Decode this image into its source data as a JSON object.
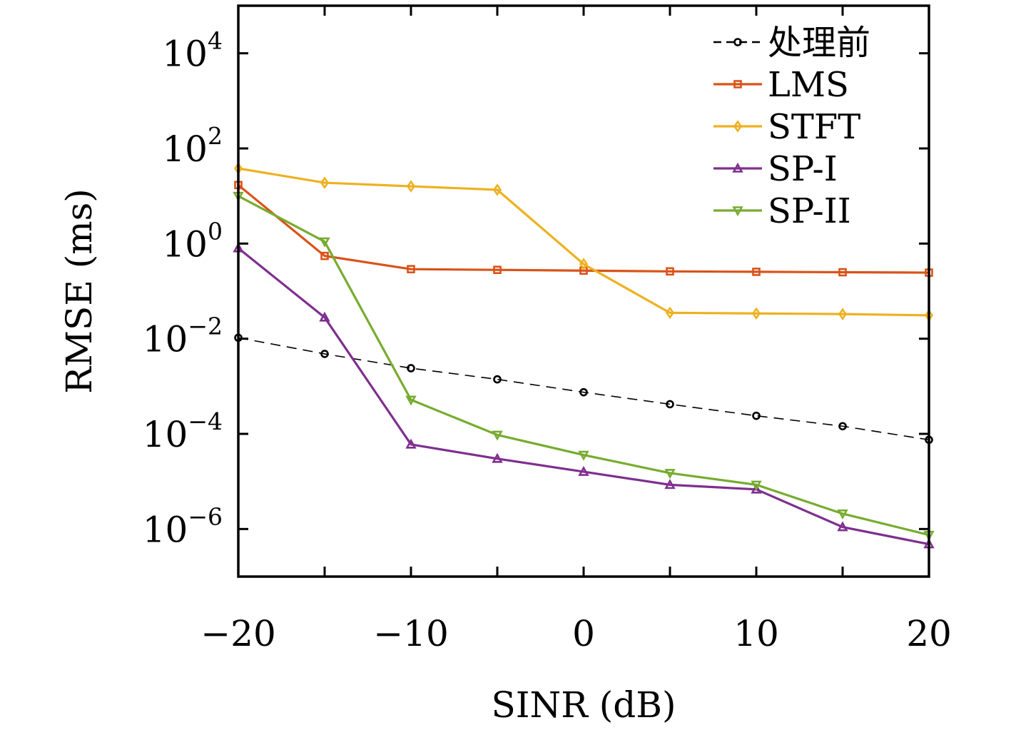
{
  "chart_data": {
    "type": "line",
    "xlabel": "SINR (dB)",
    "ylabel": "RMSE (ms)",
    "yscale": "log",
    "xlim": [
      -20,
      20
    ],
    "ylim": [
      1e-07,
      100000.0
    ],
    "grid": false,
    "legend_position": "top-right",
    "x_ticks": [
      {
        "value": -20,
        "label": "−20"
      },
      {
        "value": -10,
        "label": "−10"
      },
      {
        "value": 0,
        "label": "0"
      },
      {
        "value": 10,
        "label": "10"
      },
      {
        "value": 20,
        "label": "20"
      }
    ],
    "x_minor_ticks": [
      -15,
      -5,
      5,
      15
    ],
    "y_ticks": [
      {
        "value": 10000,
        "base": "10",
        "exp": "4"
      },
      {
        "value": 100,
        "base": "10",
        "exp": "2"
      },
      {
        "value": 1,
        "base": "10",
        "exp": "0"
      },
      {
        "value": 0.01,
        "base": "10",
        "exp": "−2"
      },
      {
        "value": 0.0001,
        "base": "10",
        "exp": "−4"
      },
      {
        "value": 1e-06,
        "base": "10",
        "exp": "−6"
      }
    ],
    "x": [
      -20,
      -15,
      -10,
      -5,
      0,
      5,
      10,
      15,
      20
    ],
    "series": [
      {
        "name": "处理前",
        "color": "#000000",
        "dash": true,
        "marker": "circle",
        "values": [
          0.0105,
          0.0048,
          0.0024,
          0.0014,
          0.00075,
          0.00042,
          0.00024,
          0.000145,
          7.5e-05
        ]
      },
      {
        "name": "LMS",
        "color": "#d95319",
        "dash": false,
        "marker": "square",
        "values": [
          17,
          0.55,
          0.29,
          0.28,
          0.27,
          0.26,
          0.255,
          0.25,
          0.245
        ]
      },
      {
        "name": "STFT",
        "color": "#edb120",
        "dash": false,
        "marker": "diamond",
        "values": [
          38,
          19,
          16,
          13.5,
          0.37,
          0.035,
          0.034,
          0.033,
          0.031
        ]
      },
      {
        "name": "SP-I",
        "color": "#7e2f8e",
        "dash": false,
        "marker": "triangle-up",
        "values": [
          0.8,
          0.028,
          6e-05,
          3e-05,
          1.6e-05,
          8.5e-06,
          6.8e-06,
          1.1e-06,
          4.8e-07
        ]
      },
      {
        "name": "SP-II",
        "color": "#77ac30",
        "dash": false,
        "marker": "triangle-down",
        "values": [
          10,
          1.1,
          0.00052,
          9.5e-05,
          3.6e-05,
          1.5e-05,
          8.5e-06,
          2.1e-06,
          7.5e-07
        ]
      }
    ]
  }
}
